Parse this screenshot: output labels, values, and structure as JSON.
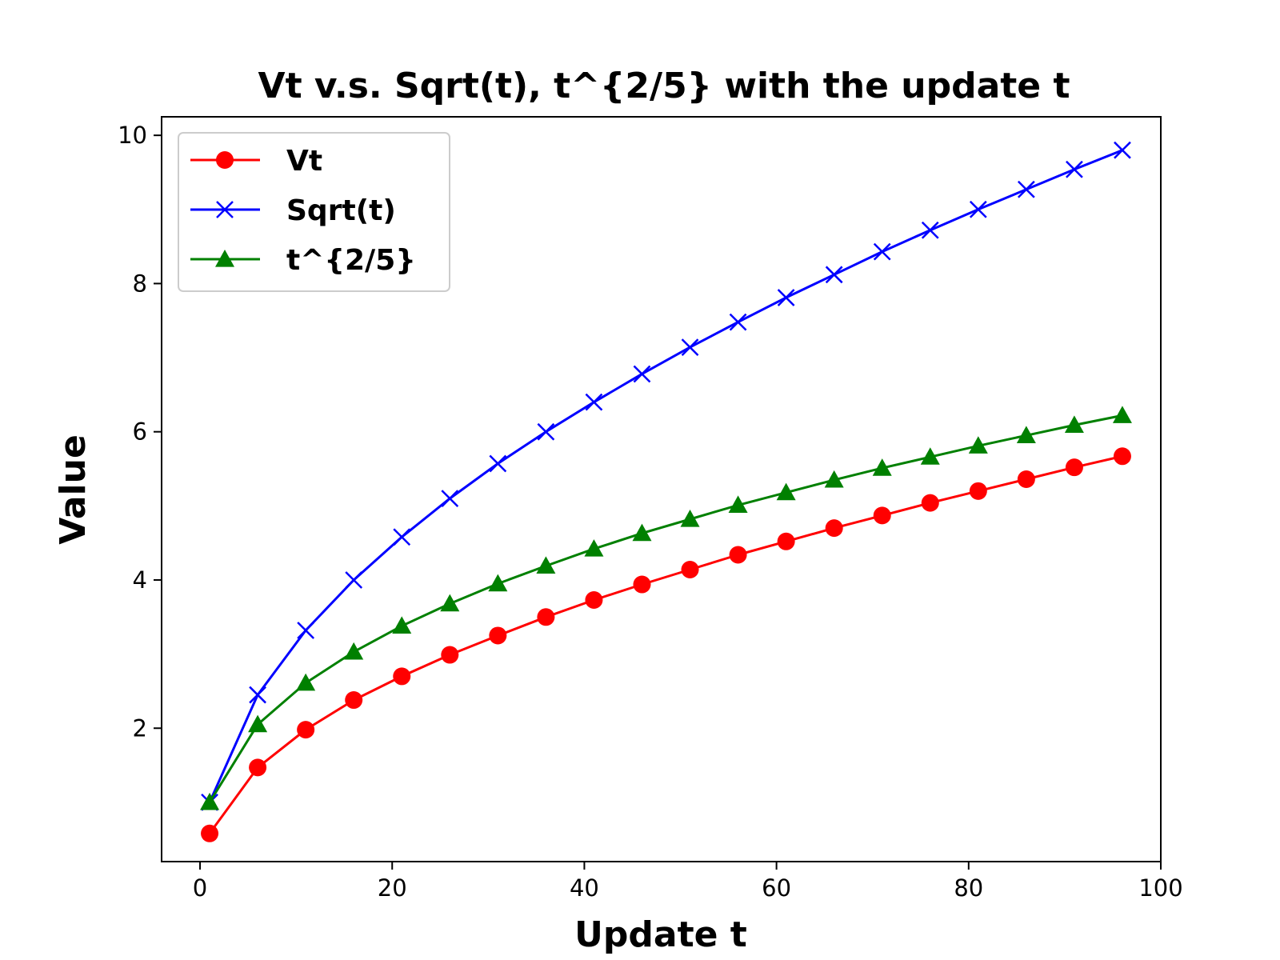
{
  "chart_data": {
    "type": "line",
    "title": "Vt v.s. Sqrt(t),  t^{2/5} with the update t",
    "xlabel": "Update t",
    "ylabel": "Value",
    "xlim": [
      -4,
      100
    ],
    "ylim": [
      0.2,
      10.25
    ],
    "x_ticks": [
      0,
      20,
      40,
      60,
      80,
      100
    ],
    "y_ticks": [
      2,
      4,
      6,
      8,
      10
    ],
    "grid": false,
    "legend_position": "top-left",
    "x": [
      1,
      6,
      11,
      16,
      21,
      26,
      31,
      36,
      41,
      46,
      51,
      56,
      61,
      66,
      71,
      76,
      81,
      86,
      91,
      96
    ],
    "series": [
      {
        "name": "Vt",
        "color": "#ff0000",
        "marker": "circle",
        "values": [
          0.58,
          1.47,
          1.98,
          2.38,
          2.7,
          2.99,
          3.25,
          3.5,
          3.73,
          3.94,
          4.14,
          4.34,
          4.52,
          4.7,
          4.87,
          5.04,
          5.2,
          5.36,
          5.52,
          5.67
        ]
      },
      {
        "name": "Sqrt(t)",
        "color": "#0000ff",
        "marker": "x",
        "values": [
          1.0,
          2.45,
          3.32,
          4.0,
          4.58,
          5.1,
          5.57,
          6.0,
          6.4,
          6.78,
          7.14,
          7.48,
          7.81,
          8.12,
          8.43,
          8.72,
          9.0,
          9.27,
          9.54,
          9.8
        ]
      },
      {
        "name": "t^{2/5}",
        "color": "#008000",
        "marker": "triangle",
        "values": [
          1.0,
          2.05,
          2.61,
          3.03,
          3.38,
          3.68,
          3.95,
          4.19,
          4.42,
          4.63,
          4.82,
          5.01,
          5.18,
          5.35,
          5.51,
          5.66,
          5.81,
          5.95,
          6.09,
          6.22
        ]
      }
    ]
  }
}
